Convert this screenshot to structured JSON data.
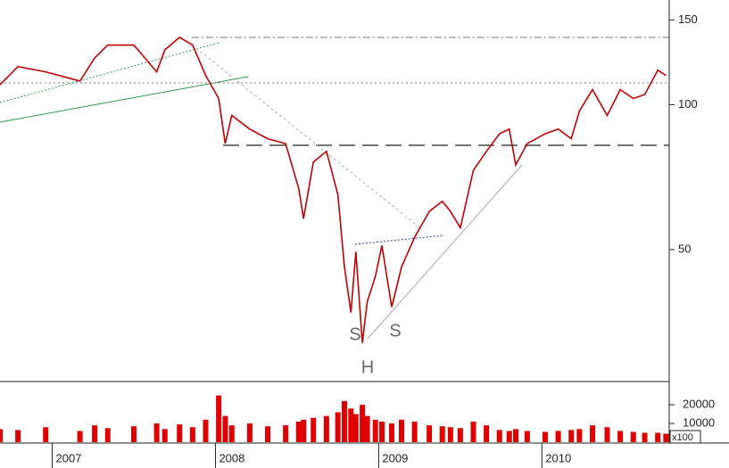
{
  "chart_data": [
    {
      "type": "line",
      "log_scale": true,
      "x": [
        2006.68,
        2006.79,
        2006.96,
        2007.17,
        2007.26,
        2007.34,
        2007.5,
        2007.64,
        2007.69,
        2007.78,
        2007.86,
        2007.94,
        2008.02,
        2008.06,
        2008.1,
        2008.21,
        2008.32,
        2008.43,
        2008.51,
        2008.54,
        2008.6,
        2008.68,
        2008.75,
        2008.79,
        2008.83,
        2008.86,
        2008.9,
        2008.93,
        2008.98,
        2009.02,
        2009.08,
        2009.14,
        2009.22,
        2009.31,
        2009.39,
        2009.44,
        2009.5,
        2009.58,
        2009.66,
        2009.74,
        2009.8,
        2009.84,
        2009.91,
        2010.02,
        2010.1,
        2010.18,
        2010.23,
        2010.31,
        2010.4,
        2010.48,
        2010.56,
        2010.63,
        2010.71,
        2010.76
      ],
      "series": [
        {
          "color": "#c00000",
          "values": [
            110,
            120,
            117,
            112,
            125,
            133,
            133,
            117,
            130,
            138,
            133,
            115,
            103,
            83,
            95,
            89,
            85,
            83,
            67,
            58,
            76,
            80,
            65,
            46,
            37,
            49.5,
            32,
            39,
            44,
            51,
            38,
            46,
            53,
            60,
            63,
            60,
            55.5,
            73,
            80,
            87,
            89,
            75,
            83,
            87,
            89,
            85,
            97,
            107.5,
            95,
            107.5,
            103,
            105,
            118,
            115
          ]
        }
      ],
      "xlim": [
        2006.68,
        2010.78
      ],
      "ylim": [
        26.6,
        165
      ],
      "yticks": [
        50,
        100,
        150
      ],
      "annotations": [
        "S",
        "S",
        "H"
      ]
    },
    {
      "type": "bar",
      "x": [
        2006.68,
        2006.79,
        2006.96,
        2007.17,
        2007.26,
        2007.34,
        2007.5,
        2007.64,
        2007.69,
        2007.78,
        2007.86,
        2007.94,
        2008.02,
        2008.06,
        2008.1,
        2008.21,
        2008.32,
        2008.43,
        2008.51,
        2008.54,
        2008.6,
        2008.68,
        2008.75,
        2008.79,
        2008.83,
        2008.86,
        2008.9,
        2008.93,
        2008.98,
        2009.02,
        2009.08,
        2009.14,
        2009.22,
        2009.31,
        2009.39,
        2009.44,
        2009.5,
        2009.58,
        2009.66,
        2009.74,
        2009.8,
        2009.84,
        2009.91,
        2010.02,
        2010.1,
        2010.18,
        2010.23,
        2010.31,
        2010.4,
        2010.48,
        2010.56,
        2010.63,
        2010.71,
        2010.76
      ],
      "series": [
        {
          "color": "#e00000",
          "values": [
            7000,
            6500,
            8000,
            6000,
            9000,
            7500,
            8500,
            10000,
            7000,
            9500,
            8000,
            12000,
            25000,
            14000,
            9000,
            10000,
            8500,
            9000,
            11000,
            12000,
            13000,
            14000,
            16000,
            22000,
            18000,
            15000,
            20000,
            14000,
            12000,
            11000,
            10000,
            12000,
            11000,
            9000,
            8500,
            8000,
            7500,
            11000,
            9000,
            6500,
            6000,
            7000,
            6000,
            5500,
            6000,
            6500,
            7000,
            9000,
            8000,
            6000,
            5500,
            5000,
            5000,
            4500
          ]
        }
      ],
      "xlim": [
        2006.68,
        2010.78
      ],
      "ylim": [
        0,
        31500
      ],
      "yticks": [
        10000,
        20000
      ],
      "xticks": [
        2007,
        2008,
        2009,
        2010
      ],
      "axis_label": "x100"
    }
  ]
}
